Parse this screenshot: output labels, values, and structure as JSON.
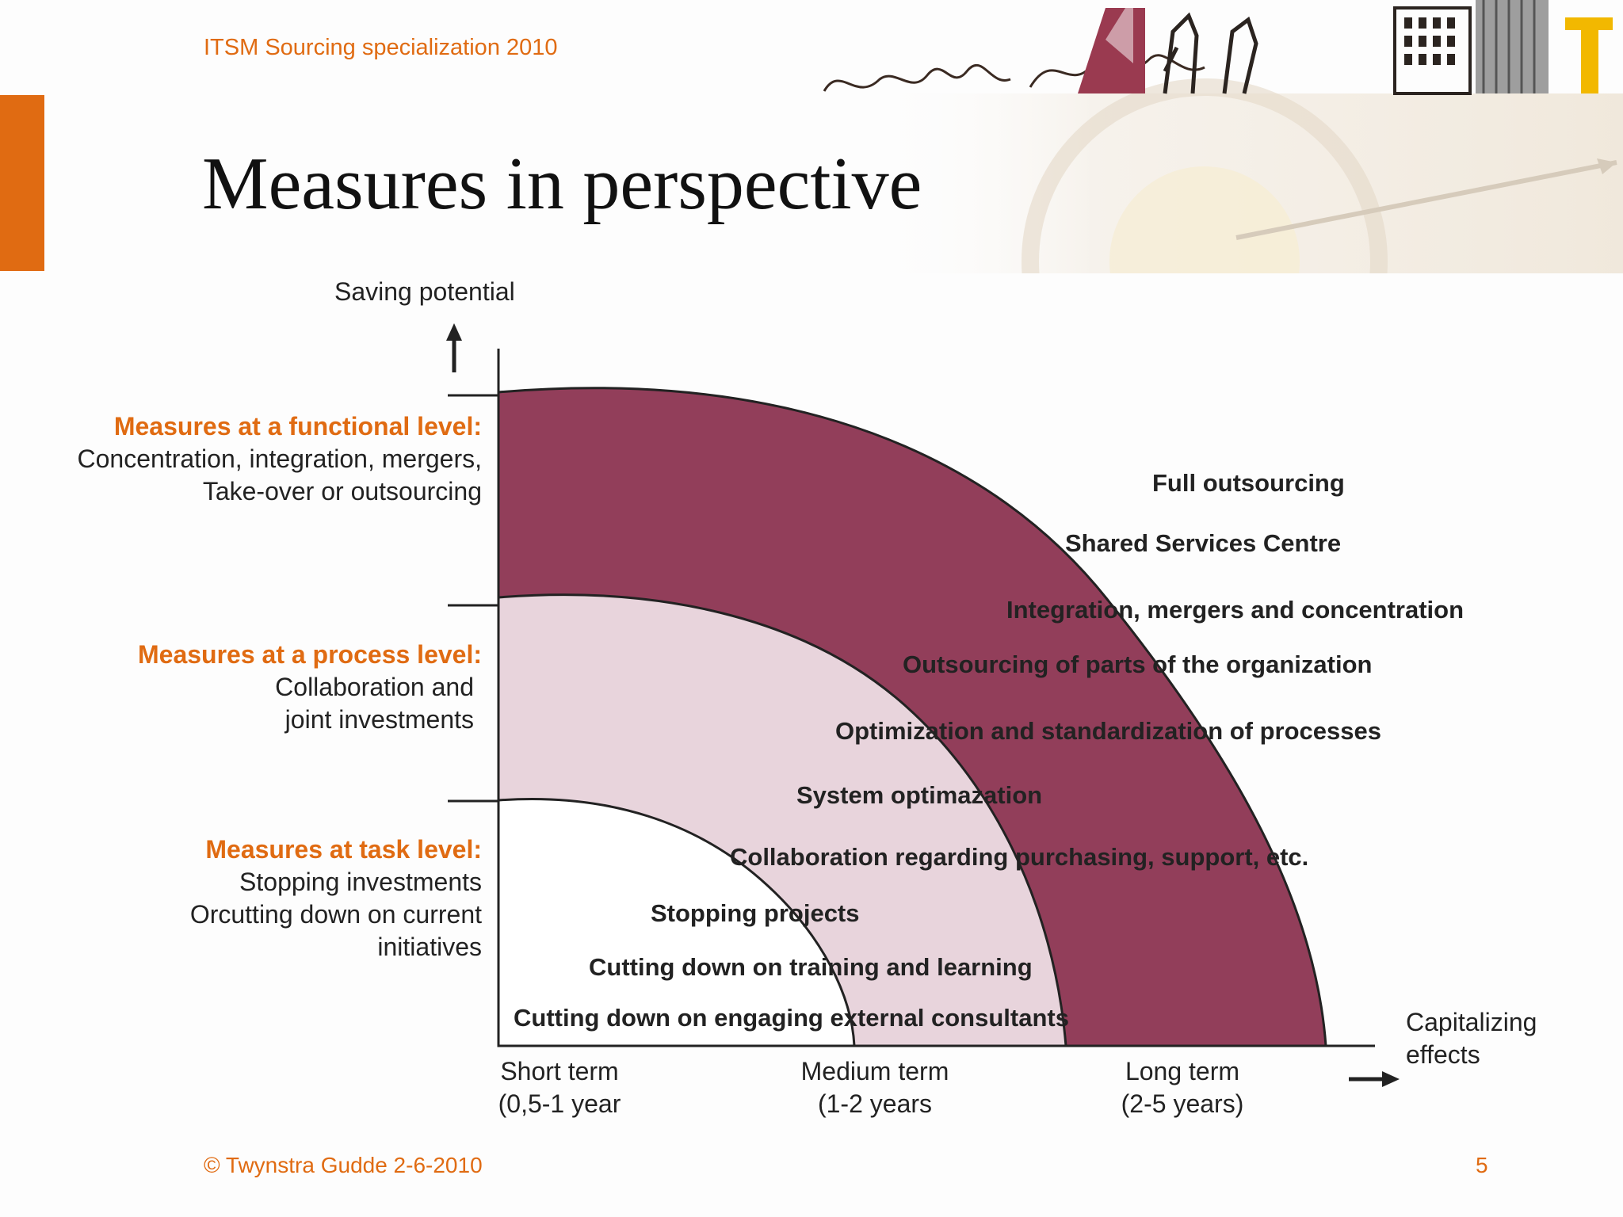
{
  "header": {
    "course": "ITSM Sourcing specialization 2010",
    "title": "Measures in perspective"
  },
  "diagram": {
    "y_axis_label": "Saving potential",
    "x_axis_label": "Capitalizing effects",
    "levels": [
      {
        "heading": "Measures at a functional level:",
        "line1": "Concentration, integration, mergers,",
        "line2": "Take-over or outsourcing",
        "line3": ""
      },
      {
        "heading": "Measures at a process level:",
        "line1": "Collaboration and",
        "line2": "joint  investments",
        "line3": ""
      },
      {
        "heading": "Measures at task level:",
        "line1": "Stopping investments",
        "line2": "Orcutting down on current",
        "line3": "initiatives"
      }
    ],
    "terms": [
      {
        "name": "Short term",
        "range": "(0,5-1 year"
      },
      {
        "name": "Medium term",
        "range": "(1-2 years"
      },
      {
        "name": "Long term",
        "range": "(2-5 years)"
      }
    ],
    "measures": [
      "Full outsourcing",
      "Shared Services Centre",
      "Integration, mergers and concentration",
      "Outsourcing of parts of the organization",
      "Optimization and standardization of processes",
      "System optimazation",
      "Collaboration regarding purchasing, support,  etc.",
      "Stopping projects",
      "Cutting down on training and learning",
      "Cutting down on engaging external consultants"
    ],
    "colors": {
      "outer_band": "#923e5a",
      "middle_band": "#e8d4dc",
      "inner_band": "#ffffff",
      "accent": "#e06b12"
    }
  },
  "footer": {
    "copyright": "© Twynstra Gudde  2-6-2010",
    "page": "5"
  }
}
